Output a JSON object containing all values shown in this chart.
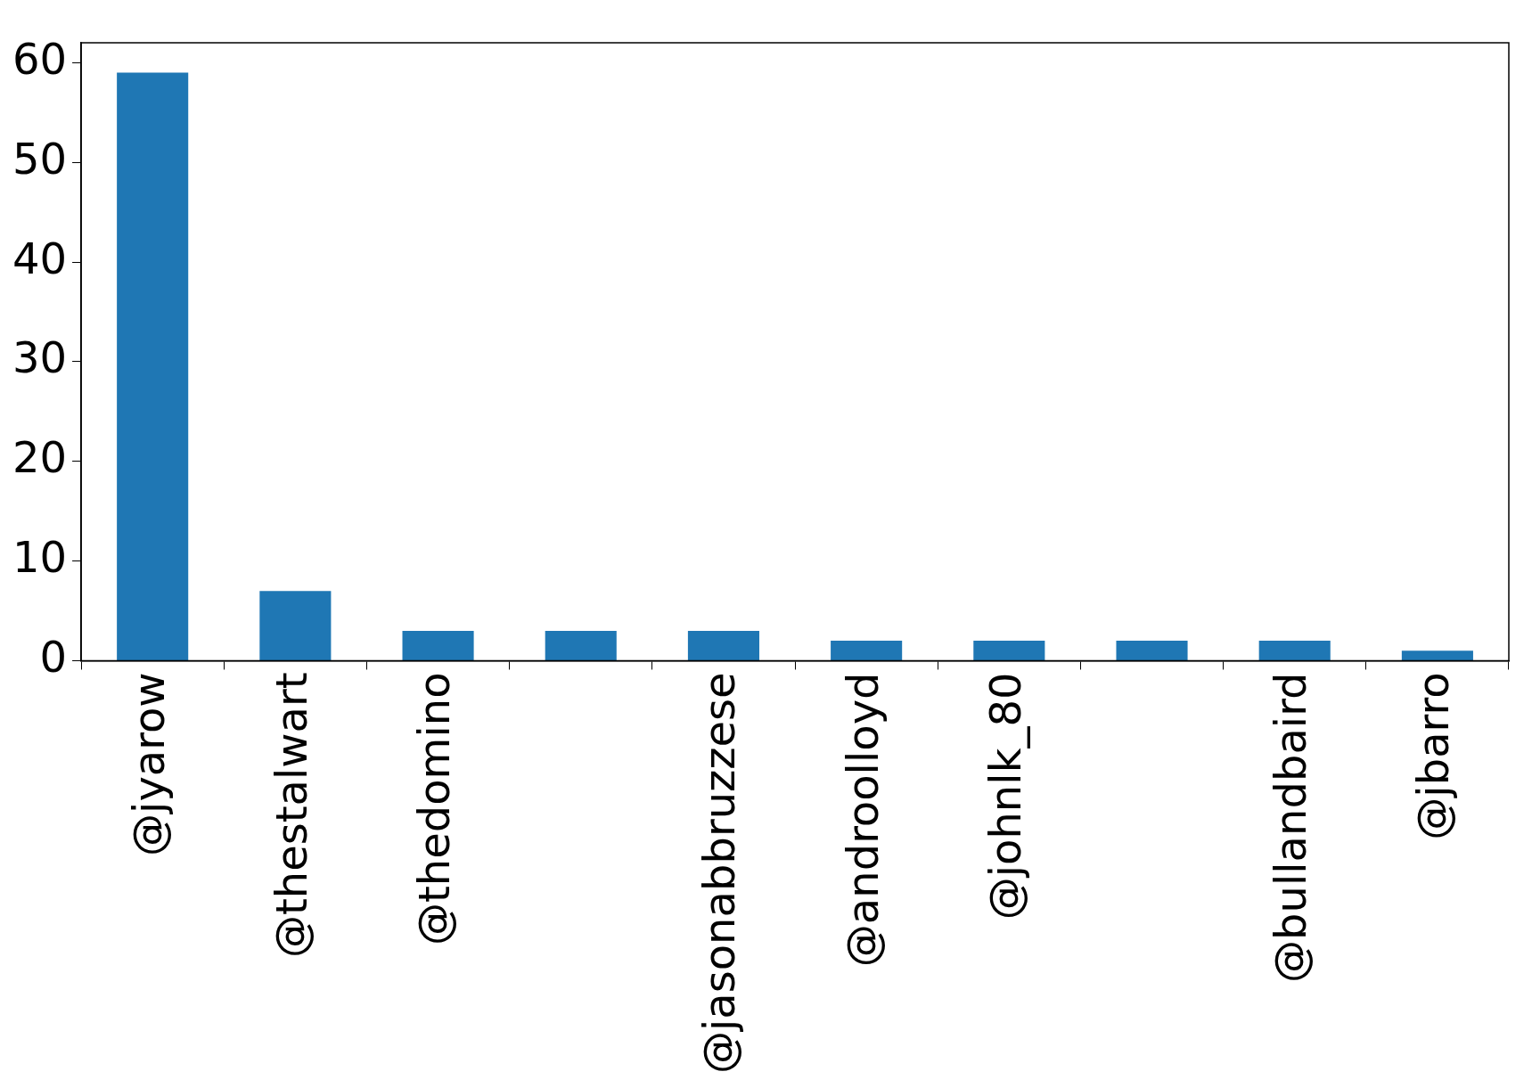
{
  "chart_data": {
    "type": "bar",
    "categories": [
      "@jyarow",
      "@thestalwart",
      "@thedomino",
      null,
      "@jasonabbruzzese",
      "@androolloyd",
      "@johnlk_80",
      null,
      "@bullandbaird",
      "@jbarro"
    ],
    "values": [
      59,
      7,
      3,
      3,
      3,
      2,
      2,
      2,
      2,
      1
    ],
    "color": "#1f77b4",
    "ylim": [
      0,
      62
    ],
    "yticks": [
      0,
      10,
      20,
      30,
      40,
      50,
      60
    ],
    "grid": false,
    "legend": false
  }
}
